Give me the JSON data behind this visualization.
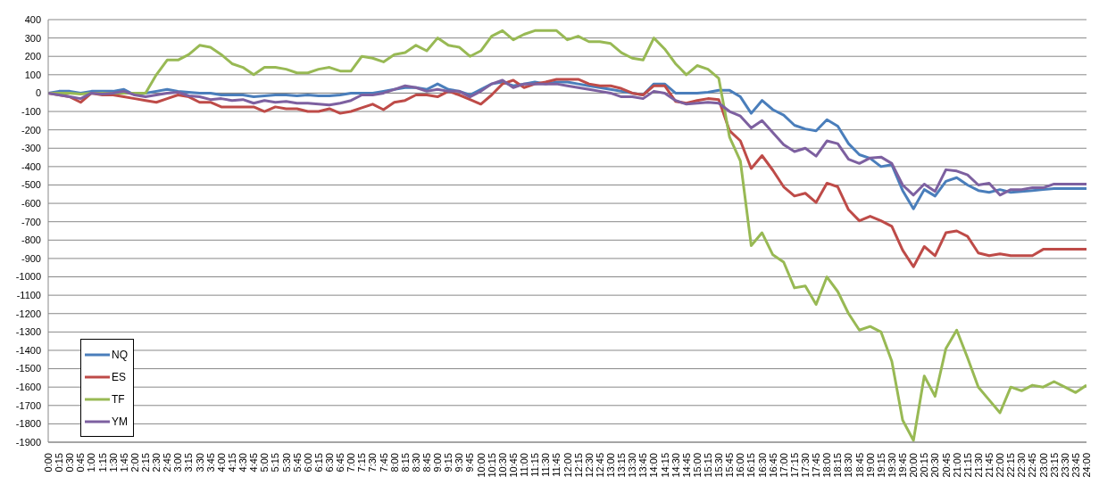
{
  "chart_data": {
    "type": "line",
    "categories": [
      "0:00",
      "0:15",
      "0:30",
      "0:45",
      "1:00",
      "1:15",
      "1:30",
      "1:45",
      "2:00",
      "2:15",
      "2:30",
      "2:45",
      "3:00",
      "3:15",
      "3:30",
      "3:45",
      "4:00",
      "4:15",
      "4:30",
      "4:45",
      "5:00",
      "5:15",
      "5:30",
      "5:45",
      "6:00",
      "6:15",
      "6:30",
      "6:45",
      "7:00",
      "7:15",
      "7:30",
      "7:45",
      "8:00",
      "8:15",
      "8:30",
      "8:45",
      "9:00",
      "9:15",
      "9:30",
      "9:45",
      "10:00",
      "10:15",
      "10:30",
      "10:45",
      "11:00",
      "11:15",
      "11:30",
      "11:45",
      "12:00",
      "12:15",
      "12:30",
      "12:45",
      "13:00",
      "13:15",
      "13:30",
      "13:45",
      "14:00",
      "14:15",
      "14:30",
      "14:45",
      "15:00",
      "15:15",
      "15:30",
      "15:45",
      "16:00",
      "16:15",
      "16:30",
      "16:45",
      "17:00",
      "17:15",
      "17:30",
      "17:45",
      "18:00",
      "18:15",
      "18:30",
      "18:45",
      "19:00",
      "19:15",
      "19:30",
      "19:45",
      "20:00",
      "20:15",
      "20:30",
      "20:45",
      "21:00",
      "21:15",
      "21:30",
      "21:45",
      "22:00",
      "22:15",
      "22:30",
      "22:45",
      "23:00",
      "23:15",
      "23:30",
      "23:45",
      "24:00"
    ],
    "series": [
      {
        "name": "NQ",
        "color": "#4a7ebb",
        "values": [
          0,
          10,
          10,
          0,
          10,
          10,
          10,
          20,
          -10,
          0,
          10,
          20,
          10,
          5,
          0,
          0,
          -10,
          -10,
          -10,
          -20,
          -15,
          -10,
          -10,
          -15,
          -10,
          -15,
          -15,
          -10,
          0,
          0,
          0,
          10,
          20,
          30,
          30,
          20,
          50,
          20,
          10,
          -10,
          20,
          50,
          60,
          40,
          50,
          60,
          50,
          60,
          60,
          50,
          40,
          30,
          20,
          10,
          0,
          -10,
          50,
          50,
          0,
          0,
          0,
          5,
          15,
          15,
          -20,
          -110,
          -40,
          -90,
          -120,
          -175,
          -195,
          -205,
          -145,
          -180,
          -275,
          -335,
          -355,
          -400,
          -390,
          -530,
          -630,
          -525,
          -560,
          -480,
          -460,
          -500,
          -530,
          -540,
          -525,
          -540,
          -535,
          -530,
          -525,
          -520,
          -520,
          -520,
          -520
        ]
      },
      {
        "name": "ES",
        "color": "#be4b48",
        "values": [
          0,
          -10,
          -20,
          -50,
          0,
          -10,
          -10,
          -20,
          -30,
          -40,
          -50,
          -30,
          -10,
          -20,
          -50,
          -50,
          -75,
          -75,
          -75,
          -75,
          -100,
          -75,
          -85,
          -85,
          -100,
          -100,
          -85,
          -110,
          -100,
          -80,
          -60,
          -90,
          -50,
          -40,
          -10,
          -10,
          -20,
          10,
          -10,
          -35,
          -60,
          -10,
          50,
          70,
          30,
          50,
          60,
          75,
          75,
          75,
          50,
          40,
          40,
          25,
          0,
          -10,
          40,
          40,
          -45,
          -55,
          -40,
          -30,
          -35,
          -205,
          -260,
          -410,
          -340,
          -420,
          -510,
          -560,
          -545,
          -595,
          -490,
          -510,
          -635,
          -695,
          -670,
          -695,
          -725,
          -855,
          -945,
          -835,
          -885,
          -760,
          -750,
          -780,
          -870,
          -885,
          -875,
          -885,
          -885,
          -885,
          -850,
          -850,
          -850,
          -850,
          -850
        ]
      },
      {
        "name": "TF",
        "color": "#98b954",
        "values": [
          0,
          0,
          0,
          -5,
          0,
          0,
          0,
          0,
          0,
          0,
          100,
          180,
          180,
          210,
          260,
          250,
          210,
          160,
          140,
          100,
          140,
          140,
          130,
          110,
          110,
          130,
          140,
          120,
          120,
          200,
          190,
          170,
          210,
          220,
          260,
          230,
          300,
          260,
          250,
          200,
          230,
          310,
          340,
          290,
          320,
          340,
          340,
          340,
          290,
          310,
          280,
          280,
          270,
          220,
          190,
          180,
          300,
          240,
          160,
          100,
          150,
          130,
          80,
          -240,
          -370,
          -830,
          -760,
          -880,
          -920,
          -1060,
          -1050,
          -1150,
          -1000,
          -1080,
          -1200,
          -1290,
          -1270,
          -1300,
          -1460,
          -1780,
          -1890,
          -1540,
          -1650,
          -1390,
          -1290,
          -1440,
          -1600,
          -1670,
          -1740,
          -1600,
          -1620,
          -1590,
          -1600,
          -1570,
          -1600,
          -1630,
          -1590
        ]
      },
      {
        "name": "YM",
        "color": "#7d60a0",
        "values": [
          0,
          -10,
          -20,
          -30,
          0,
          -5,
          0,
          10,
          -10,
          -20,
          -10,
          0,
          5,
          -15,
          -20,
          -35,
          -30,
          -40,
          -35,
          -55,
          -40,
          -50,
          -45,
          -55,
          -55,
          -60,
          -65,
          -55,
          -40,
          -10,
          -10,
          0,
          20,
          40,
          30,
          10,
          20,
          10,
          10,
          -20,
          10,
          50,
          70,
          30,
          50,
          50,
          50,
          50,
          40,
          30,
          20,
          10,
          0,
          -20,
          -20,
          -30,
          10,
          0,
          -40,
          -60,
          -55,
          -50,
          -55,
          -100,
          -125,
          -190,
          -150,
          -215,
          -280,
          -318,
          -300,
          -343,
          -260,
          -275,
          -360,
          -383,
          -353,
          -348,
          -383,
          -500,
          -555,
          -495,
          -535,
          -417,
          -424,
          -445,
          -500,
          -490,
          -555,
          -525,
          -525,
          -515,
          -515,
          -495,
          -495,
          -495,
          -495
        ]
      }
    ],
    "ylim": [
      -1900,
      400
    ],
    "yticks": [
      -1900,
      -1800,
      -1700,
      -1600,
      -1500,
      -1400,
      -1300,
      -1200,
      -1100,
      -1000,
      -900,
      -800,
      -700,
      -600,
      -500,
      -400,
      -300,
      -200,
      -100,
      0,
      100,
      200,
      300,
      400
    ],
    "grid": "y",
    "legend": "bottom left",
    "marker": "none",
    "line_style": "solid"
  }
}
